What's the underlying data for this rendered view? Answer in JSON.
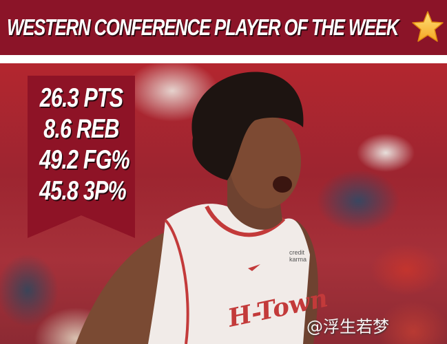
{
  "header": {
    "title": "WESTERN CONFERENCE PLAYER OF THE WEEK",
    "icon": "star-icon"
  },
  "stats": [
    {
      "value": "26.3 PTS"
    },
    {
      "value": "8.6 REB"
    },
    {
      "value": "49.2 FG%"
    },
    {
      "value": "45.8 3P%"
    }
  ],
  "jersey": {
    "wordmark": "H-Town",
    "sponsor": "credit karma"
  },
  "watermark": "@浮生若梦",
  "colors": {
    "brand": "#8b1428",
    "text": "#ffffff"
  }
}
